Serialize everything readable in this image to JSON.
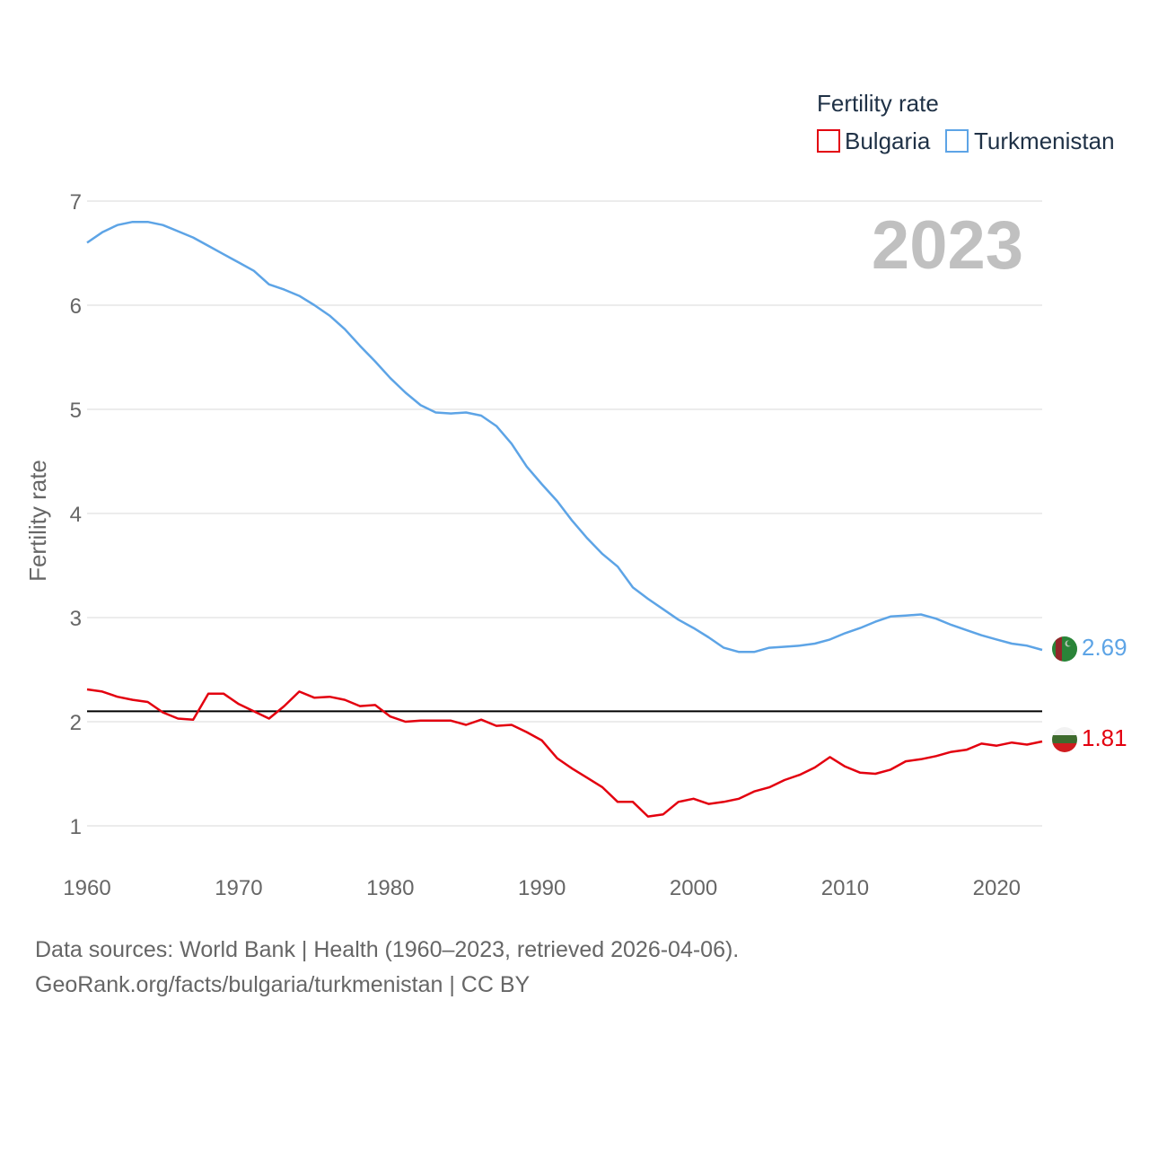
{
  "chart_data": {
    "type": "line",
    "ylabel": "Fertility rate",
    "ylim": [
      0.5,
      7.2
    ],
    "yticks": [
      1,
      2,
      3,
      4,
      5,
      6,
      7
    ],
    "xlim": [
      1960,
      2023
    ],
    "xticks": [
      1960,
      1970,
      1980,
      1990,
      2000,
      2010,
      2020
    ],
    "grid": true,
    "current_year": "2023",
    "legend": {
      "title": "Fertility rate",
      "position": "top-right"
    },
    "reference_line": {
      "y": 2.1
    },
    "x": [
      1960,
      1961,
      1962,
      1963,
      1964,
      1965,
      1966,
      1967,
      1968,
      1969,
      1970,
      1971,
      1972,
      1973,
      1974,
      1975,
      1976,
      1977,
      1978,
      1979,
      1980,
      1981,
      1982,
      1983,
      1984,
      1985,
      1986,
      1987,
      1988,
      1989,
      1990,
      1991,
      1992,
      1993,
      1994,
      1995,
      1996,
      1997,
      1998,
      1999,
      2000,
      2001,
      2002,
      2003,
      2004,
      2005,
      2006,
      2007,
      2008,
      2009,
      2010,
      2011,
      2012,
      2013,
      2014,
      2015,
      2016,
      2017,
      2018,
      2019,
      2020,
      2021,
      2022,
      2023
    ],
    "series": [
      {
        "name": "Bulgaria",
        "color": "#e3000f",
        "end_label": "1.81",
        "values": [
          2.31,
          2.29,
          2.24,
          2.21,
          2.19,
          2.09,
          2.03,
          2.02,
          2.27,
          2.27,
          2.17,
          2.1,
          2.03,
          2.15,
          2.29,
          2.23,
          2.24,
          2.21,
          2.15,
          2.16,
          2.05,
          2.0,
          2.01,
          2.01,
          2.01,
          1.97,
          2.02,
          1.96,
          1.97,
          1.9,
          1.82,
          1.65,
          1.55,
          1.46,
          1.37,
          1.23,
          1.23,
          1.09,
          1.11,
          1.23,
          1.26,
          1.21,
          1.23,
          1.26,
          1.33,
          1.37,
          1.44,
          1.49,
          1.56,
          1.66,
          1.57,
          1.51,
          1.5,
          1.54,
          1.62,
          1.64,
          1.67,
          1.71,
          1.73,
          1.79,
          1.77,
          1.8,
          1.78,
          1.81
        ]
      },
      {
        "name": "Turkmenistan",
        "color": "#5da4e6",
        "end_label": "2.69",
        "values": [
          6.6,
          6.7,
          6.77,
          6.8,
          6.8,
          6.77,
          6.71,
          6.65,
          6.57,
          6.49,
          6.41,
          6.33,
          6.2,
          6.15,
          6.09,
          6.0,
          5.9,
          5.77,
          5.61,
          5.46,
          5.3,
          5.16,
          5.04,
          4.97,
          4.96,
          4.97,
          4.94,
          4.84,
          4.67,
          4.45,
          4.28,
          4.12,
          3.93,
          3.76,
          3.61,
          3.49,
          3.29,
          3.18,
          3.08,
          2.98,
          2.9,
          2.81,
          2.71,
          2.67,
          2.67,
          2.71,
          2.72,
          2.73,
          2.75,
          2.79,
          2.85,
          2.9,
          2.96,
          3.01,
          3.02,
          3.03,
          2.99,
          2.93,
          2.88,
          2.83,
          2.79,
          2.75,
          2.73,
          2.69
        ]
      }
    ]
  },
  "footer": {
    "source": "Data sources: World Bank | Health (1960–2023, retrieved 2026-04-06).",
    "credit": "GeoRank.org/facts/bulgaria/turkmenistan | CC BY"
  },
  "flags": {
    "bulgaria": "bulgaria-flag-icon",
    "turkmenistan": "turkmenistan-flag-icon"
  }
}
